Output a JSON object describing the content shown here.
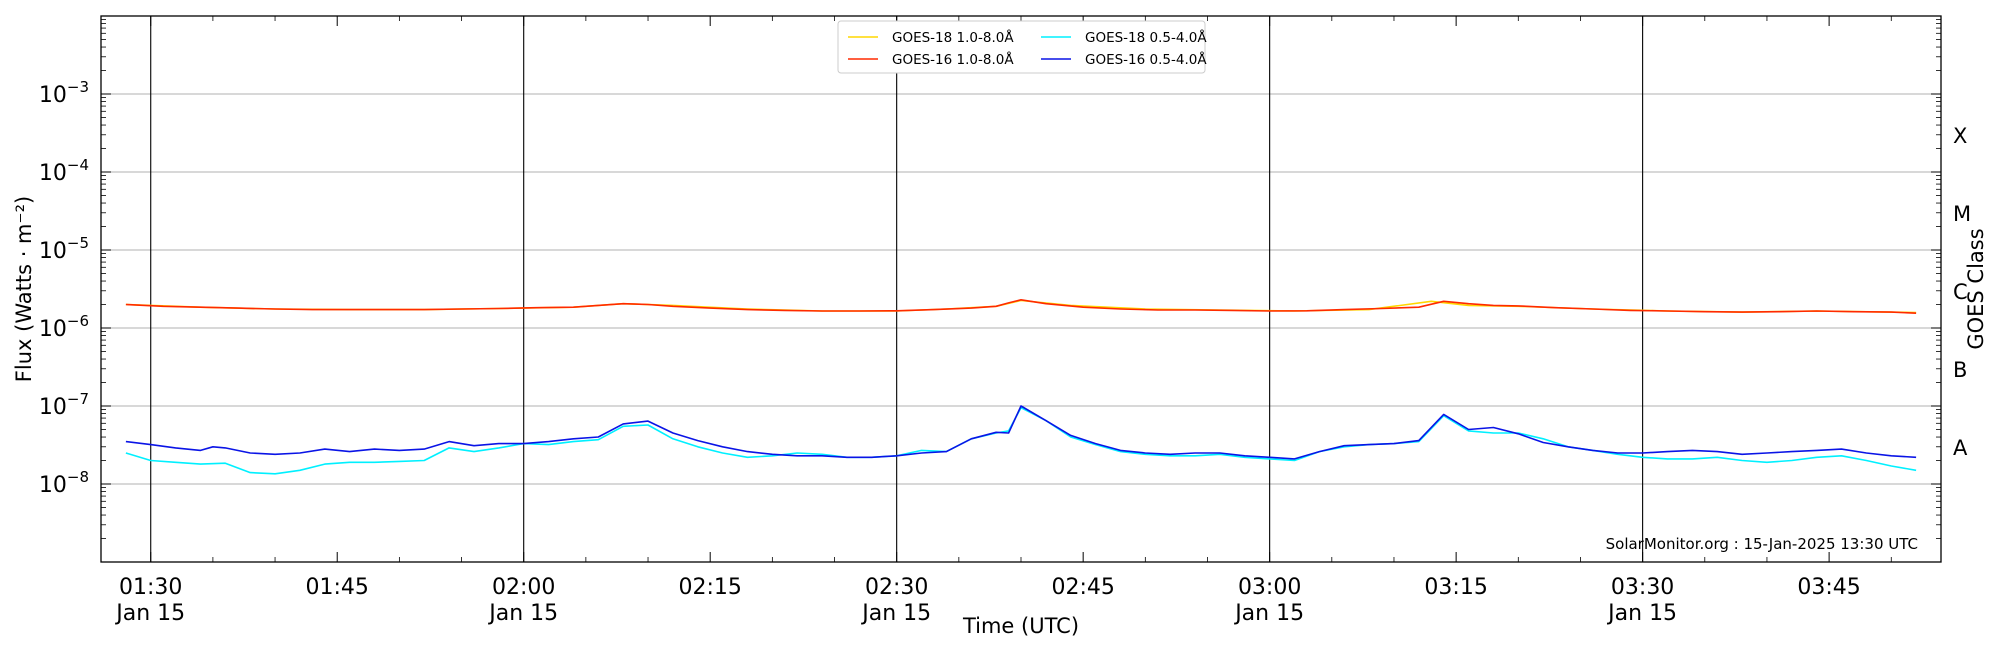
{
  "chart_data": {
    "type": "line",
    "xlabel": "Time (UTC)",
    "ylabel": "Flux (Watts · m⁻²)",
    "ylabel_right": "GOES Class",
    "watermark": "SolarMonitor.org : 15-Jan-2025 13:30 UTC",
    "y_scale": "log",
    "ylim": [
      1e-09,
      0.01
    ],
    "xlim": [
      "01:26",
      "03:54"
    ],
    "x_unit": "minutes",
    "grid": "horizontal",
    "legend_placement": "top-center",
    "y_tick_labels": [
      {
        "value": 1e-08,
        "base": "10",
        "exp": "−8"
      },
      {
        "value": 1e-07,
        "base": "10",
        "exp": "−7"
      },
      {
        "value": 1e-06,
        "base": "10",
        "exp": "−6"
      },
      {
        "value": 1e-05,
        "base": "10",
        "exp": "−5"
      },
      {
        "value": 0.0001,
        "base": "10",
        "exp": "−4"
      },
      {
        "value": 0.001,
        "base": "10",
        "exp": "−3"
      }
    ],
    "x_ticks": [
      {
        "time": "01:30",
        "label": "01:30",
        "sublabel": "Jan 15"
      },
      {
        "time": "01:45",
        "label": "01:45",
        "sublabel": ""
      },
      {
        "time": "02:00",
        "label": "02:00",
        "sublabel": "Jan 15"
      },
      {
        "time": "02:15",
        "label": "02:15",
        "sublabel": ""
      },
      {
        "time": "02:30",
        "label": "02:30",
        "sublabel": "Jan 15"
      },
      {
        "time": "02:45",
        "label": "02:45",
        "sublabel": ""
      },
      {
        "time": "03:00",
        "label": "03:00",
        "sublabel": "Jan 15"
      },
      {
        "time": "03:15",
        "label": "03:15",
        "sublabel": ""
      },
      {
        "time": "03:30",
        "label": "03:30",
        "sublabel": "Jan 15"
      },
      {
        "time": "03:45",
        "label": "03:45",
        "sublabel": ""
      }
    ],
    "vertical_lines": [
      "01:30",
      "02:00",
      "02:30",
      "03:00",
      "03:30"
    ],
    "goes_classes": [
      {
        "label": "A",
        "value": 3e-08
      },
      {
        "label": "B",
        "value": 3e-07
      },
      {
        "label": "C",
        "value": 3e-06
      },
      {
        "label": "M",
        "value": 3e-05
      },
      {
        "label": "X",
        "value": 0.0003
      }
    ],
    "legend": [
      {
        "name": "GOES-18 1.0-8.0Å",
        "color": "#ffd700"
      },
      {
        "name": "GOES-16 1.0-8.0Å",
        "color": "#ff2a00"
      },
      {
        "name": "GOES-18 0.5-4.0Å",
        "color": "#00f0ff"
      },
      {
        "name": "GOES-16 0.5-4.0Å",
        "color": "#0a14e6"
      }
    ],
    "series": [
      {
        "name": "GOES-18 1.0-8.0Å",
        "color": "#ffd700",
        "x": [
          "01:28",
          "01:34",
          "01:40",
          "01:46",
          "01:52",
          "01:58",
          "02:04",
          "02:08",
          "02:12",
          "02:18",
          "02:24",
          "02:30",
          "02:34",
          "02:38",
          "02:40",
          "02:44",
          "02:50",
          "02:56",
          "03:02",
          "03:08",
          "03:13",
          "03:16",
          "03:20",
          "03:26",
          "03:32",
          "03:38",
          "03:44",
          "03:52"
        ],
        "y": [
          2e-06,
          1.85e-06,
          1.75e-06,
          1.72e-06,
          1.72e-06,
          1.78e-06,
          1.85e-06,
          2.05e-06,
          1.95e-06,
          1.75e-06,
          1.65e-06,
          1.65e-06,
          1.75e-06,
          1.9e-06,
          2.25e-06,
          1.95e-06,
          1.75e-06,
          1.7e-06,
          1.65e-06,
          1.72e-06,
          2.2e-06,
          1.95e-06,
          1.9e-06,
          1.75e-06,
          1.65e-06,
          1.6e-06,
          1.65e-06,
          1.58e-06
        ]
      },
      {
        "name": "GOES-16 1.0-8.0Å",
        "color": "#ff2a00",
        "x": [
          "01:28",
          "01:31",
          "01:34",
          "01:37",
          "01:40",
          "01:43",
          "01:46",
          "01:49",
          "01:52",
          "01:55",
          "01:58",
          "02:01",
          "02:04",
          "02:06",
          "02:08",
          "02:10",
          "02:12",
          "02:15",
          "02:18",
          "02:21",
          "02:24",
          "02:27",
          "02:30",
          "02:33",
          "02:36",
          "02:38",
          "02:39",
          "02:40",
          "02:42",
          "02:45",
          "02:48",
          "02:51",
          "02:54",
          "02:57",
          "03:00",
          "03:03",
          "03:06",
          "03:09",
          "03:12",
          "03:14",
          "03:16",
          "03:18",
          "03:20",
          "03:23",
          "03:26",
          "03:29",
          "03:32",
          "03:35",
          "03:38",
          "03:41",
          "03:44",
          "03:47",
          "03:50",
          "03:52"
        ],
        "y": [
          2e-06,
          1.9e-06,
          1.85e-06,
          1.8e-06,
          1.75e-06,
          1.72e-06,
          1.72e-06,
          1.72e-06,
          1.72e-06,
          1.75e-06,
          1.78e-06,
          1.82e-06,
          1.85e-06,
          1.95e-06,
          2.05e-06,
          2e-06,
          1.9e-06,
          1.8e-06,
          1.72e-06,
          1.68e-06,
          1.65e-06,
          1.65e-06,
          1.66e-06,
          1.72e-06,
          1.8e-06,
          1.9e-06,
          2.1e-06,
          2.3e-06,
          2.05e-06,
          1.85e-06,
          1.75e-06,
          1.7e-06,
          1.7e-06,
          1.68e-06,
          1.65e-06,
          1.66e-06,
          1.72e-06,
          1.78e-06,
          1.85e-06,
          2.2e-06,
          2.05e-06,
          1.95e-06,
          1.92e-06,
          1.82e-06,
          1.75e-06,
          1.68e-06,
          1.65e-06,
          1.62e-06,
          1.6e-06,
          1.62e-06,
          1.65e-06,
          1.62e-06,
          1.6e-06,
          1.55e-06
        ]
      },
      {
        "name": "GOES-18 0.5-4.0Å",
        "color": "#00f0ff",
        "x": [
          "01:28",
          "01:30",
          "01:32",
          "01:34",
          "01:36",
          "01:38",
          "01:40",
          "01:42",
          "01:44",
          "01:46",
          "01:48",
          "01:50",
          "01:52",
          "01:54",
          "01:56",
          "01:58",
          "02:00",
          "02:02",
          "02:04",
          "02:06",
          "02:08",
          "02:10",
          "02:12",
          "02:14",
          "02:16",
          "02:18",
          "02:20",
          "02:22",
          "02:24",
          "02:26",
          "02:28",
          "02:30",
          "02:32",
          "02:34",
          "02:36",
          "02:38",
          "02:39",
          "02:40",
          "02:42",
          "02:44",
          "02:46",
          "02:48",
          "02:50",
          "02:52",
          "02:54",
          "02:56",
          "02:58",
          "03:00",
          "03:02",
          "03:04",
          "03:06",
          "03:08",
          "03:10",
          "03:12",
          "03:14",
          "03:16",
          "03:18",
          "03:20",
          "03:22",
          "03:24",
          "03:26",
          "03:28",
          "03:30",
          "03:32",
          "03:34",
          "03:36",
          "03:38",
          "03:40",
          "03:42",
          "03:44",
          "03:46",
          "03:48",
          "03:50",
          "03:52"
        ],
        "y": [
          2.5e-08,
          2e-08,
          1.9e-08,
          1.8e-08,
          1.85e-08,
          1.4e-08,
          1.35e-08,
          1.5e-08,
          1.8e-08,
          1.9e-08,
          1.9e-08,
          1.95e-08,
          2e-08,
          2.9e-08,
          2.6e-08,
          2.9e-08,
          3.3e-08,
          3.2e-08,
          3.5e-08,
          3.7e-08,
          5.5e-08,
          5.7e-08,
          3.8e-08,
          3e-08,
          2.5e-08,
          2.2e-08,
          2.3e-08,
          2.5e-08,
          2.4e-08,
          2.2e-08,
          2.2e-08,
          2.3e-08,
          2.7e-08,
          2.6e-08,
          3.8e-08,
          4.5e-08,
          4.8e-08,
          9.5e-08,
          6.5e-08,
          4e-08,
          3.2e-08,
          2.6e-08,
          2.4e-08,
          2.3e-08,
          2.3e-08,
          2.4e-08,
          2.2e-08,
          2.1e-08,
          2e-08,
          2.6e-08,
          3e-08,
          3.2e-08,
          3.3e-08,
          3.5e-08,
          7.5e-08,
          4.8e-08,
          4.5e-08,
          4.5e-08,
          3.8e-08,
          3e-08,
          2.7e-08,
          2.4e-08,
          2.2e-08,
          2.1e-08,
          2.1e-08,
          2.2e-08,
          2e-08,
          1.9e-08,
          2e-08,
          2.2e-08,
          2.3e-08,
          2e-08,
          1.7e-08,
          1.5e-08
        ]
      },
      {
        "name": "GOES-16 0.5-4.0Å",
        "color": "#0a14e6",
        "x": [
          "01:28",
          "01:30",
          "01:32",
          "01:34",
          "01:35",
          "01:36",
          "01:38",
          "01:40",
          "01:42",
          "01:44",
          "01:46",
          "01:48",
          "01:50",
          "01:52",
          "01:54",
          "01:56",
          "01:58",
          "02:00",
          "02:02",
          "02:04",
          "02:06",
          "02:08",
          "02:10",
          "02:12",
          "02:14",
          "02:16",
          "02:18",
          "02:20",
          "02:22",
          "02:24",
          "02:26",
          "02:28",
          "02:30",
          "02:32",
          "02:34",
          "02:36",
          "02:38",
          "02:39",
          "02:40",
          "02:42",
          "02:44",
          "02:46",
          "02:48",
          "02:50",
          "02:52",
          "02:54",
          "02:56",
          "02:58",
          "03:00",
          "03:02",
          "03:04",
          "03:06",
          "03:08",
          "03:10",
          "03:12",
          "03:14",
          "03:16",
          "03:18",
          "03:20",
          "03:22",
          "03:24",
          "03:26",
          "03:28",
          "03:30",
          "03:32",
          "03:34",
          "03:36",
          "03:38",
          "03:40",
          "03:42",
          "03:44",
          "03:46",
          "03:48",
          "03:50",
          "03:52"
        ],
        "y": [
          3.5e-08,
          3.2e-08,
          2.9e-08,
          2.7e-08,
          3e-08,
          2.9e-08,
          2.5e-08,
          2.4e-08,
          2.5e-08,
          2.8e-08,
          2.6e-08,
          2.8e-08,
          2.7e-08,
          2.8e-08,
          3.5e-08,
          3.1e-08,
          3.3e-08,
          3.3e-08,
          3.5e-08,
          3.8e-08,
          4e-08,
          5.9e-08,
          6.4e-08,
          4.5e-08,
          3.6e-08,
          3e-08,
          2.6e-08,
          2.4e-08,
          2.3e-08,
          2.3e-08,
          2.2e-08,
          2.2e-08,
          2.3e-08,
          2.5e-08,
          2.6e-08,
          3.8e-08,
          4.6e-08,
          4.5e-08,
          1e-07,
          6.5e-08,
          4.2e-08,
          3.3e-08,
          2.7e-08,
          2.5e-08,
          2.4e-08,
          2.5e-08,
          2.5e-08,
          2.3e-08,
          2.2e-08,
          2.1e-08,
          2.6e-08,
          3.1e-08,
          3.2e-08,
          3.3e-08,
          3.6e-08,
          7.8e-08,
          5e-08,
          5.3e-08,
          4.4e-08,
          3.4e-08,
          3e-08,
          2.7e-08,
          2.5e-08,
          2.5e-08,
          2.6e-08,
          2.7e-08,
          2.6e-08,
          2.4e-08,
          2.5e-08,
          2.6e-08,
          2.7e-08,
          2.8e-08,
          2.5e-08,
          2.3e-08,
          2.2e-08
        ]
      }
    ]
  }
}
